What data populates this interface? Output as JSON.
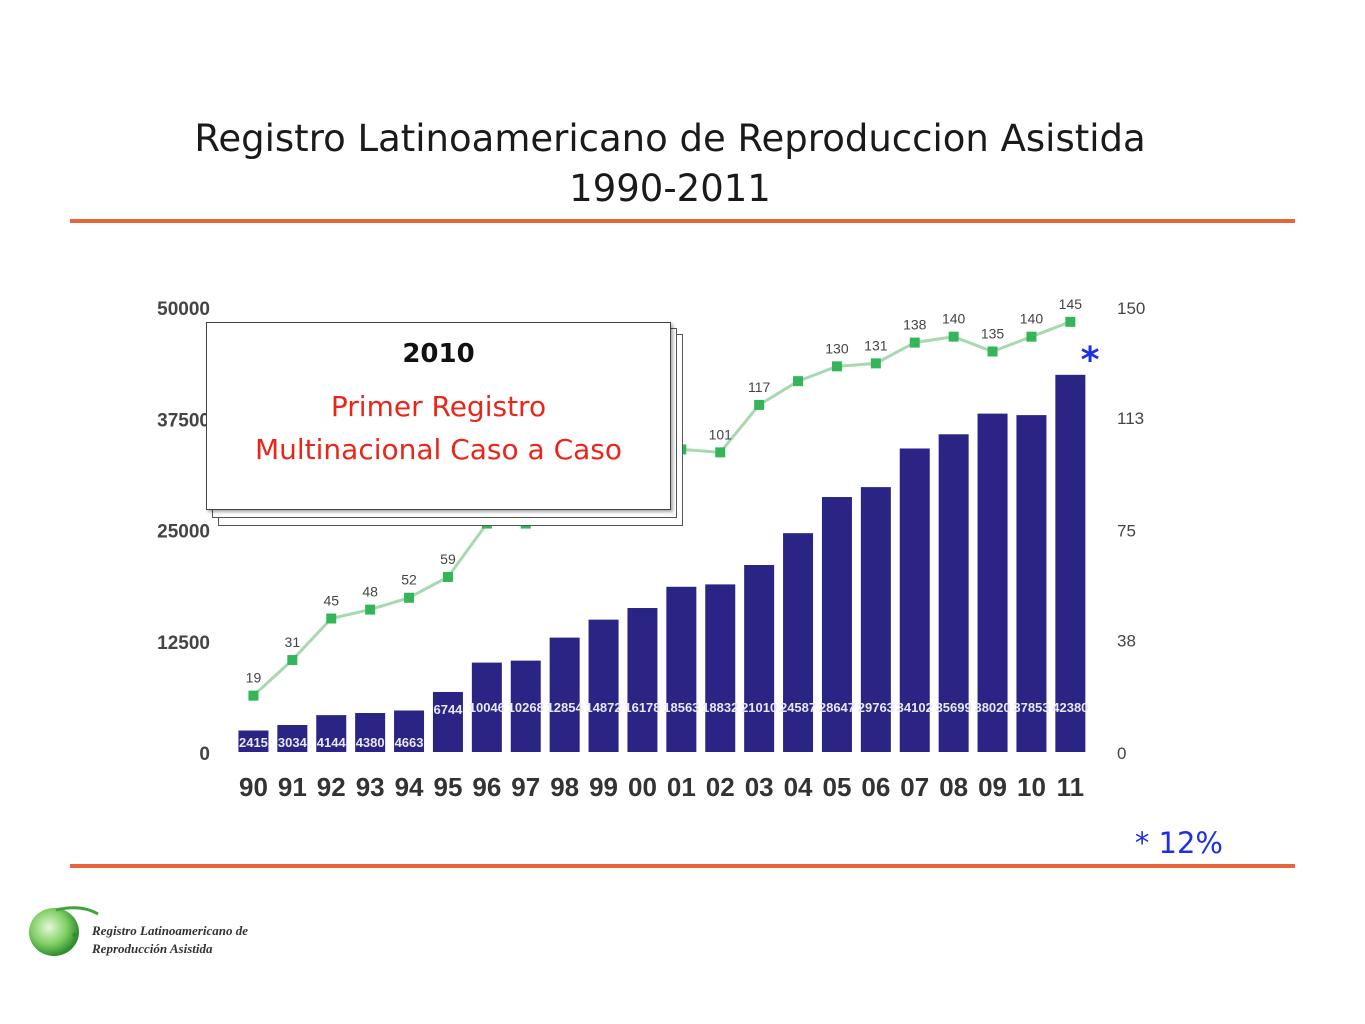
{
  "title_line1": "Registro Latinoamericano de Reproduccion Asistida",
  "title_line2": "1990-2011",
  "callout": {
    "year": "2010",
    "line1": "Primer  Registro",
    "line2": "Multinacional  Caso a Caso"
  },
  "star_marker": "*",
  "footnote": "* 12%",
  "logo": {
    "line1": "Registro Latinoamericano de",
    "line2": "Reproducción Asistida"
  },
  "colors": {
    "bar": "#2a2585",
    "line": "#a8d8b0",
    "marker": "#35b55a",
    "rule": "#e8643a",
    "accent": "#1f2ee8"
  },
  "chart_data": {
    "type": "bar",
    "categories": [
      "90",
      "91",
      "92",
      "93",
      "94",
      "95",
      "96",
      "97",
      "98",
      "99",
      "00",
      "01",
      "02",
      "03",
      "04",
      "05",
      "06",
      "07",
      "08",
      "09",
      "10",
      "11"
    ],
    "series": [
      {
        "axis": "left",
        "type": "bar",
        "values": [
          2415,
          3034,
          4144,
          4380,
          4663,
          6744,
          10046,
          10268,
          12854,
          14872,
          16178,
          18563,
          18832,
          21010,
          24587,
          28647,
          29763,
          34102,
          35699,
          38020,
          37853,
          42380
        ],
        "labels": [
          "2415",
          "3034",
          "4144",
          "4380",
          "4663",
          "6744",
          "10046",
          "10268",
          "12854",
          "14872",
          "16178",
          "18563",
          "18832",
          "21010",
          "24587",
          "28647",
          "29763",
          "34102",
          "35699",
          "38020",
          "37853",
          "42380"
        ]
      },
      {
        "axis": "right",
        "type": "line",
        "values": [
          19,
          31,
          45,
          48,
          52,
          59,
          77,
          77,
          98,
          100,
          100,
          102,
          101,
          117,
          125,
          130,
          131,
          138,
          140,
          135,
          140,
          145
        ],
        "labels": [
          "19",
          "31",
          "45",
          "48",
          "52",
          "59",
          "",
          "",
          "",
          "",
          "",
          "",
          "101",
          "117",
          "",
          "130",
          "131",
          "138",
          "140",
          "135",
          "140",
          "145"
        ]
      }
    ],
    "y_left": {
      "range": [
        0,
        50000
      ],
      "ticks": [
        "0",
        "12500",
        "25000",
        "37500",
        "50000"
      ]
    },
    "y_right": {
      "range": [
        0,
        150
      ],
      "ticks": [
        "0",
        "38",
        "75",
        "113",
        "150"
      ]
    },
    "grid": false
  }
}
